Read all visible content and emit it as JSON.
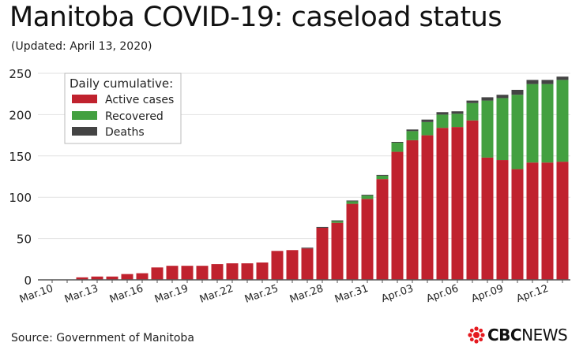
{
  "title": "Manitoba COVID-19: caseload status",
  "subtitle": "(Updated: April 13, 2020)",
  "source": "Source: Government of Manitoba",
  "logo": {
    "brand": "CBC",
    "suffix": "NEWS",
    "icon": "cbc-gem-icon"
  },
  "chart_data": {
    "type": "bar",
    "stacked": true,
    "title": "",
    "xlabel": "",
    "ylabel": "",
    "ylim": [
      0,
      250
    ],
    "yticks": [
      0,
      50,
      100,
      150,
      200,
      250
    ],
    "grid": true,
    "legend": {
      "title": "Daily cumulative:",
      "placement": "top-left"
    },
    "categories": [
      "Mar.10",
      "Mar.11",
      "Mar.12",
      "Mar.13",
      "Mar.14",
      "Mar.15",
      "Mar.16",
      "Mar.17",
      "Mar.18",
      "Mar.19",
      "Mar.20",
      "Mar.21",
      "Mar.22",
      "Mar.23",
      "Mar.24",
      "Mar.25",
      "Mar.26",
      "Mar.27",
      "Mar.28",
      "Mar.29",
      "Mar.30",
      "Mar.31",
      "Apr.01",
      "Apr.02",
      "Apr.03",
      "Apr.04",
      "Apr.05",
      "Apr.06",
      "Apr.07",
      "Apr.08",
      "Apr.09",
      "Apr.10",
      "Apr.11",
      "Apr.12",
      "Apr.13"
    ],
    "tick_labels": [
      "Mar.10",
      "Mar.13",
      "Mar.16",
      "Mar.19",
      "Mar.22",
      "Mar.25",
      "Mar.28",
      "Mar.31",
      "Apr.03",
      "Apr.06",
      "Apr.09",
      "Apr.12"
    ],
    "series": [
      {
        "name": "Active cases",
        "color": "#c0222e",
        "values": [
          0,
          0,
          3,
          4,
          4,
          7,
          8,
          15,
          17,
          17,
          17,
          19,
          20,
          20,
          21,
          35,
          36,
          38,
          63,
          69,
          92,
          98,
          122,
          155,
          169,
          175,
          184,
          185,
          193,
          148,
          145,
          134,
          142,
          142,
          143
        ]
      },
      {
        "name": "Recovered",
        "color": "#43a040",
        "values": [
          0,
          0,
          0,
          0,
          0,
          0,
          0,
          0,
          0,
          0,
          0,
          0,
          0,
          0,
          0,
          0,
          0,
          0,
          0,
          2,
          3,
          4,
          4,
          11,
          11,
          16,
          16,
          16,
          21,
          69,
          75,
          90,
          95,
          95,
          99
        ]
      },
      {
        "name": "Deaths",
        "color": "#444444",
        "values": [
          0,
          0,
          0,
          0,
          0,
          0,
          0,
          0,
          0,
          0,
          0,
          0,
          0,
          0,
          0,
          0,
          0,
          1,
          1,
          1,
          1,
          1,
          1,
          1,
          2,
          3,
          3,
          3,
          3,
          4,
          4,
          6,
          5,
          5,
          4
        ]
      }
    ]
  }
}
